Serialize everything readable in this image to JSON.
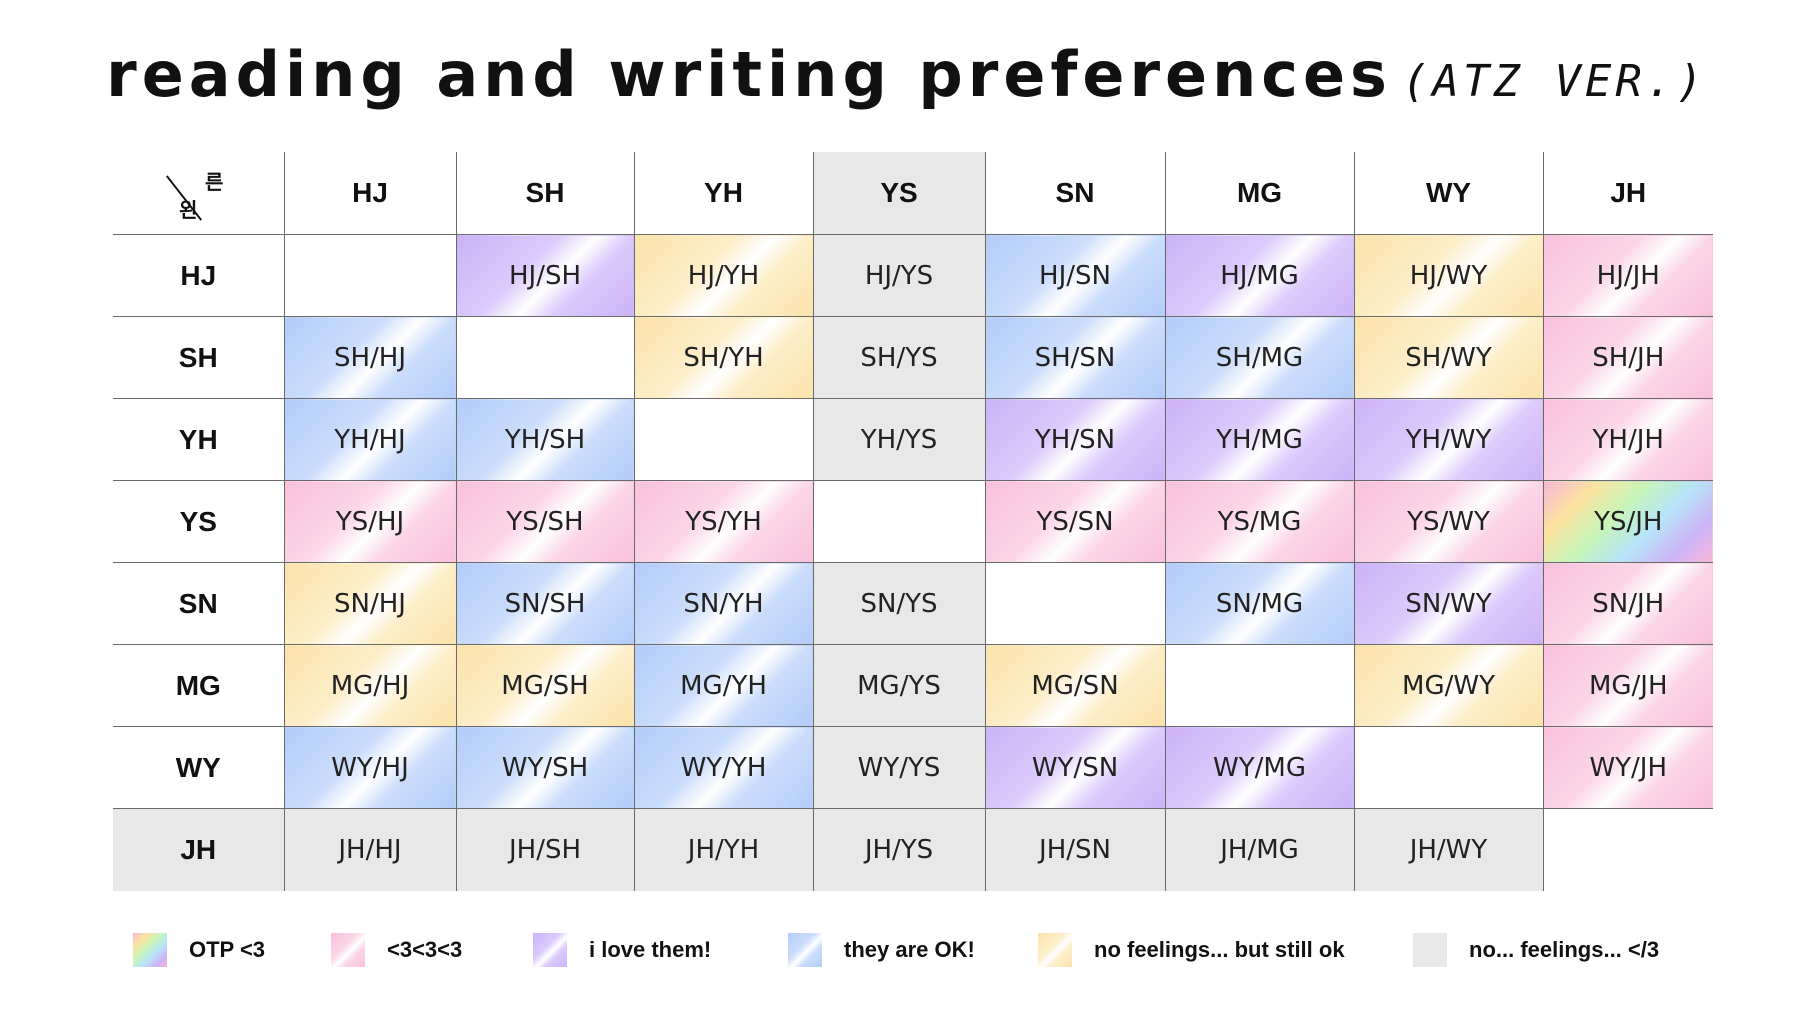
{
  "title": {
    "main": "reading and writing preferences",
    "version": "(ATZ VER.)"
  },
  "corner": {
    "top": "른",
    "bottom": "왼"
  },
  "members": [
    "HJ",
    "SH",
    "YH",
    "YS",
    "SN",
    "MG",
    "WY",
    "JH"
  ],
  "rows": [
    {
      "label": "HJ",
      "cells": [
        {
          "text": "",
          "tier": "empty"
        },
        {
          "text": "HJ/SH",
          "tier": "purple"
        },
        {
          "text": "HJ/YH",
          "tier": "yellow"
        },
        {
          "text": "HJ/YS",
          "tier": "grey"
        },
        {
          "text": "HJ/SN",
          "tier": "blue"
        },
        {
          "text": "HJ/MG",
          "tier": "purple"
        },
        {
          "text": "HJ/WY",
          "tier": "yellow"
        },
        {
          "text": "HJ/JH",
          "tier": "pink"
        }
      ]
    },
    {
      "label": "SH",
      "cells": [
        {
          "text": "SH/HJ",
          "tier": "blue"
        },
        {
          "text": "",
          "tier": "empty"
        },
        {
          "text": "SH/YH",
          "tier": "yellow"
        },
        {
          "text": "SH/YS",
          "tier": "grey"
        },
        {
          "text": "SH/SN",
          "tier": "blue"
        },
        {
          "text": "SH/MG",
          "tier": "blue"
        },
        {
          "text": "SH/WY",
          "tier": "yellow"
        },
        {
          "text": "SH/JH",
          "tier": "pink"
        }
      ]
    },
    {
      "label": "YH",
      "cells": [
        {
          "text": "YH/HJ",
          "tier": "blue"
        },
        {
          "text": "YH/SH",
          "tier": "blue"
        },
        {
          "text": "",
          "tier": "empty"
        },
        {
          "text": "YH/YS",
          "tier": "grey"
        },
        {
          "text": "YH/SN",
          "tier": "purple"
        },
        {
          "text": "YH/MG",
          "tier": "purple"
        },
        {
          "text": "YH/WY",
          "tier": "purple"
        },
        {
          "text": "YH/JH",
          "tier": "pink"
        }
      ]
    },
    {
      "label": "YS",
      "cells": [
        {
          "text": "YS/HJ",
          "tier": "pink"
        },
        {
          "text": "YS/SH",
          "tier": "pink"
        },
        {
          "text": "YS/YH",
          "tier": "pink"
        },
        {
          "text": "",
          "tier": "empty"
        },
        {
          "text": "YS/SN",
          "tier": "pink"
        },
        {
          "text": "YS/MG",
          "tier": "pink"
        },
        {
          "text": "YS/WY",
          "tier": "pink"
        },
        {
          "text": "YS/JH",
          "tier": "rainbow"
        }
      ]
    },
    {
      "label": "SN",
      "cells": [
        {
          "text": "SN/HJ",
          "tier": "yellow"
        },
        {
          "text": "SN/SH",
          "tier": "blue"
        },
        {
          "text": "SN/YH",
          "tier": "blue"
        },
        {
          "text": "SN/YS",
          "tier": "grey"
        },
        {
          "text": "",
          "tier": "empty"
        },
        {
          "text": "SN/MG",
          "tier": "blue"
        },
        {
          "text": "SN/WY",
          "tier": "purple"
        },
        {
          "text": "SN/JH",
          "tier": "pink"
        }
      ]
    },
    {
      "label": "MG",
      "cells": [
        {
          "text": "MG/HJ",
          "tier": "yellow"
        },
        {
          "text": "MG/SH",
          "tier": "yellow"
        },
        {
          "text": "MG/YH",
          "tier": "blue"
        },
        {
          "text": "MG/YS",
          "tier": "grey"
        },
        {
          "text": "MG/SN",
          "tier": "yellow"
        },
        {
          "text": "",
          "tier": "empty"
        },
        {
          "text": "MG/WY",
          "tier": "yellow"
        },
        {
          "text": "MG/JH",
          "tier": "pink"
        }
      ]
    },
    {
      "label": "WY",
      "cells": [
        {
          "text": "WY/HJ",
          "tier": "blue"
        },
        {
          "text": "WY/SH",
          "tier": "blue"
        },
        {
          "text": "WY/YH",
          "tier": "blue"
        },
        {
          "text": "WY/YS",
          "tier": "grey"
        },
        {
          "text": "WY/SN",
          "tier": "purple"
        },
        {
          "text": "WY/MG",
          "tier": "purple"
        },
        {
          "text": "",
          "tier": "empty"
        },
        {
          "text": "WY/JH",
          "tier": "pink"
        }
      ]
    },
    {
      "label": "JH",
      "cells": [
        {
          "text": "JH/HJ",
          "tier": "grey"
        },
        {
          "text": "JH/SH",
          "tier": "grey"
        },
        {
          "text": "JH/YH",
          "tier": "grey"
        },
        {
          "text": "JH/YS",
          "tier": "grey"
        },
        {
          "text": "JH/SN",
          "tier": "grey"
        },
        {
          "text": "JH/MG",
          "tier": "grey"
        },
        {
          "text": "JH/WY",
          "tier": "grey"
        },
        {
          "text": "",
          "tier": "empty"
        }
      ]
    }
  ],
  "legend": [
    {
      "tier": "rainbow",
      "label": "OTP <3"
    },
    {
      "tier": "pink",
      "label": "<3<3<3"
    },
    {
      "tier": "purple",
      "label": "i love them!"
    },
    {
      "tier": "blue",
      "label": "they are OK!"
    },
    {
      "tier": "yellow",
      "label": "no feelings... but still ok"
    },
    {
      "tier": "grey",
      "label": "no... feelings... </3"
    }
  ],
  "colors": {
    "pink": "#f9c1dc",
    "purple": "#cbb2f7",
    "blue": "#b2ccf9",
    "yellow": "#fbe2aa",
    "grey": "#e8e8e8"
  }
}
